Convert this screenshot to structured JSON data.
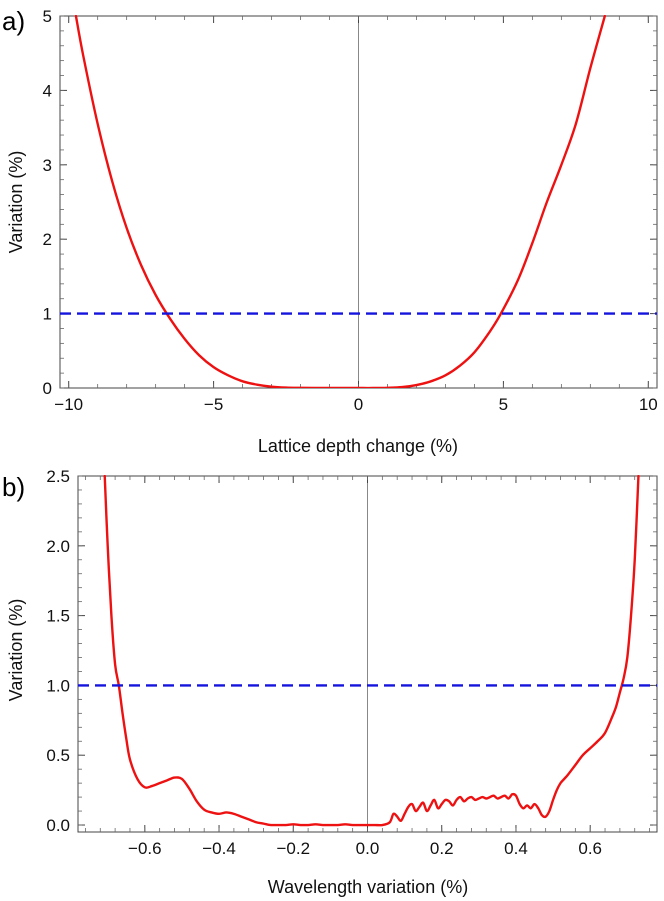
{
  "chart_data": [
    {
      "panel_label": "a)",
      "type": "line",
      "title": "",
      "xlabel": "Lattice depth change (%)",
      "ylabel": "Variation (%)",
      "xlim": [
        -10.3,
        10.3
      ],
      "ylim": [
        0,
        5
      ],
      "xticks": [
        -10,
        -5,
        0,
        5,
        10
      ],
      "xtick_labels": [
        "−10",
        "−5",
        "0",
        "5",
        "10"
      ],
      "yticks": [
        0,
        1,
        2,
        3,
        4,
        5
      ],
      "ytick_labels": [
        "0",
        "1",
        "2",
        "3",
        "4",
        "5"
      ],
      "zero_line": true,
      "series": [
        {
          "name": "variation",
          "color": "#ee1111",
          "style": "solid",
          "x": [
            -9.75,
            -9.5,
            -9.0,
            -8.5,
            -8.0,
            -7.5,
            -7.0,
            -6.5,
            -6.0,
            -5.5,
            -5.0,
            -4.5,
            -4.0,
            -3.5,
            -3.0,
            -2.5,
            -2.0,
            -1.5,
            -1.0,
            -0.5,
            0.0,
            0.5,
            1.0,
            1.5,
            2.0,
            2.5,
            3.0,
            3.5,
            4.0,
            4.5,
            4.9,
            5.5,
            6.0,
            6.5,
            7.0,
            7.5,
            8.0,
            8.5
          ],
          "y": [
            5.0,
            4.47,
            3.55,
            2.78,
            2.15,
            1.65,
            1.25,
            0.93,
            0.66,
            0.44,
            0.28,
            0.17,
            0.09,
            0.045,
            0.018,
            0.006,
            0.002,
            0.0,
            0.0,
            0.0,
            0.0,
            0.0,
            0.003,
            0.012,
            0.04,
            0.09,
            0.17,
            0.3,
            0.48,
            0.74,
            0.99,
            1.45,
            1.95,
            2.5,
            3.0,
            3.55,
            4.3,
            5.0
          ]
        },
        {
          "name": "threshold",
          "color": "#1414dd",
          "style": "dashed",
          "x": [
            -10.3,
            10.3
          ],
          "y": [
            1,
            1
          ]
        }
      ]
    },
    {
      "panel_label": "b)",
      "type": "line",
      "title": "",
      "xlabel": "Wavelength variation (%)",
      "ylabel": "Variation (%)",
      "xlim": [
        -0.78,
        0.78
      ],
      "ylim": [
        -0.05,
        2.5
      ],
      "xticks": [
        -0.6,
        -0.4,
        -0.2,
        0.0,
        0.2,
        0.4,
        0.6
      ],
      "xtick_labels": [
        "−0.6",
        "−0.4",
        "−0.2",
        "0.0",
        "0.2",
        "0.4",
        "0.6"
      ],
      "yticks": [
        0.0,
        0.5,
        1.0,
        1.5,
        2.0,
        2.5
      ],
      "ytick_labels": [
        "0.0",
        "0.5",
        "1.0",
        "1.5",
        "2.0",
        "2.5"
      ],
      "zero_line": true,
      "series": [
        {
          "name": "variation",
          "color": "#ee1111",
          "style": "solid",
          "x": [
            -0.708,
            -0.7,
            -0.69,
            -0.68,
            -0.67,
            -0.66,
            -0.65,
            -0.64,
            -0.62,
            -0.6,
            -0.58,
            -0.56,
            -0.54,
            -0.52,
            -0.5,
            -0.48,
            -0.46,
            -0.44,
            -0.42,
            -0.4,
            -0.38,
            -0.36,
            -0.34,
            -0.32,
            -0.3,
            -0.28,
            -0.26,
            -0.24,
            -0.22,
            -0.2,
            -0.18,
            -0.16,
            -0.14,
            -0.12,
            -0.1,
            -0.08,
            -0.06,
            -0.04,
            -0.02,
            0.0,
            0.02,
            0.04,
            0.06,
            0.07,
            0.08,
            0.09,
            0.1,
            0.11,
            0.12,
            0.13,
            0.14,
            0.15,
            0.16,
            0.17,
            0.18,
            0.19,
            0.2,
            0.21,
            0.22,
            0.23,
            0.24,
            0.25,
            0.26,
            0.27,
            0.28,
            0.29,
            0.3,
            0.31,
            0.32,
            0.33,
            0.34,
            0.35,
            0.36,
            0.37,
            0.38,
            0.39,
            0.4,
            0.41,
            0.42,
            0.43,
            0.44,
            0.45,
            0.46,
            0.47,
            0.48,
            0.49,
            0.5,
            0.51,
            0.52,
            0.53,
            0.54,
            0.56,
            0.58,
            0.6,
            0.62,
            0.64,
            0.66,
            0.67,
            0.68,
            0.69,
            0.7,
            0.71,
            0.72,
            0.73
          ],
          "y": [
            2.5,
            2.0,
            1.5,
            1.15,
            1.0,
            0.8,
            0.62,
            0.47,
            0.33,
            0.27,
            0.28,
            0.3,
            0.32,
            0.34,
            0.33,
            0.26,
            0.17,
            0.11,
            0.09,
            0.08,
            0.09,
            0.08,
            0.06,
            0.04,
            0.02,
            0.01,
            0.0,
            0.0,
            0.0,
            0.005,
            0.0,
            0.0,
            0.005,
            0.0,
            0.0,
            0.0,
            0.005,
            0.0,
            0.0,
            0.0,
            0.0,
            0.0,
            0.02,
            0.08,
            0.06,
            0.03,
            0.08,
            0.13,
            0.15,
            0.1,
            0.13,
            0.16,
            0.1,
            0.14,
            0.18,
            0.12,
            0.15,
            0.18,
            0.17,
            0.14,
            0.18,
            0.2,
            0.17,
            0.19,
            0.2,
            0.18,
            0.19,
            0.2,
            0.19,
            0.2,
            0.21,
            0.19,
            0.2,
            0.21,
            0.19,
            0.22,
            0.21,
            0.15,
            0.12,
            0.14,
            0.12,
            0.15,
            0.12,
            0.07,
            0.06,
            0.1,
            0.18,
            0.25,
            0.3,
            0.33,
            0.36,
            0.43,
            0.5,
            0.55,
            0.6,
            0.66,
            0.78,
            0.85,
            0.95,
            1.05,
            1.2,
            1.5,
            1.9,
            2.5
          ]
        },
        {
          "name": "threshold",
          "color": "#1414dd",
          "style": "dashed",
          "x": [
            -0.78,
            0.78
          ],
          "y": [
            1,
            1
          ]
        }
      ]
    }
  ]
}
